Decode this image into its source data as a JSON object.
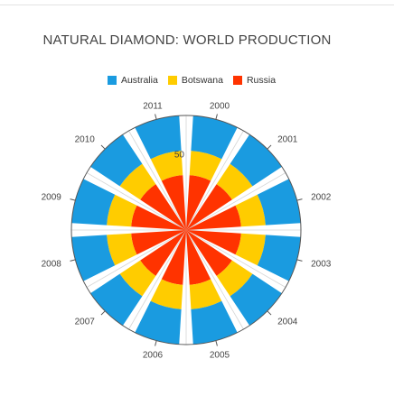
{
  "chart_data": {
    "type": "polar-stacked-bar",
    "title": "NATURAL DIAMOND: WORLD PRODUCTION",
    "categories": [
      "2000",
      "2001",
      "2002",
      "2003",
      "2004",
      "2005",
      "2006",
      "2007",
      "2008",
      "2009",
      "2010",
      "2011"
    ],
    "series": [
      {
        "name": "Russia",
        "color": "#ff3300",
        "values": [
          36,
          36,
          36,
          36,
          36,
          36,
          36,
          36,
          36,
          36,
          36,
          36
        ]
      },
      {
        "name": "Botswana",
        "color": "#ffcc00",
        "values": [
          16,
          16,
          16,
          16,
          16,
          16,
          16,
          16,
          16,
          16,
          16,
          16
        ]
      },
      {
        "name": "Australia",
        "color": "#1a9be0",
        "values": [
          23,
          23,
          23,
          23,
          23,
          23,
          23,
          23,
          23,
          23,
          23,
          23
        ]
      }
    ],
    "legend_order": [
      "Australia",
      "Botswana",
      "Russia"
    ],
    "value_axis": {
      "max": 75,
      "tick_labels": [
        "50"
      ]
    },
    "legend_position": "top"
  }
}
